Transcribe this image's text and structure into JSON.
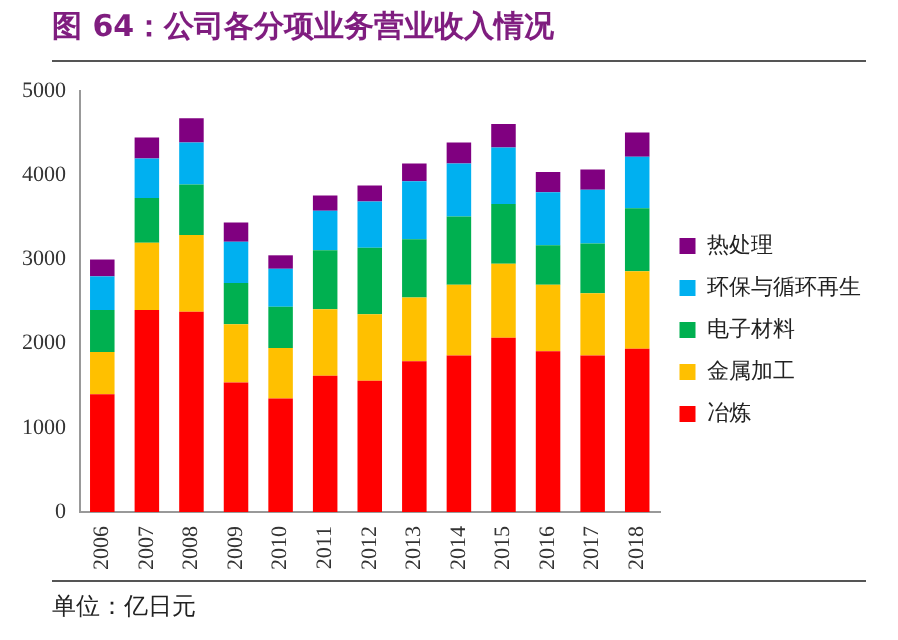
{
  "chart_data": {
    "type": "bar",
    "title": "图 64：公司各分项业务营业收入情况",
    "annotations": [
      "单位：亿日元"
    ],
    "categories": [
      "2006",
      "2007",
      "2008",
      "2009",
      "2010",
      "2011",
      "2012",
      "2013",
      "2014",
      "2015",
      "2016",
      "2017",
      "2018"
    ],
    "stacked": true,
    "series": [
      {
        "name": "冶炼",
        "color": "#ff0000",
        "values": [
          1400,
          2400,
          2380,
          1540,
          1350,
          1620,
          1560,
          1790,
          1860,
          2070,
          1910,
          1860,
          1940
        ]
      },
      {
        "name": "金属加工",
        "color": "#ffc000",
        "values": [
          500,
          800,
          910,
          690,
          600,
          790,
          790,
          760,
          840,
          880,
          790,
          740,
          920
        ]
      },
      {
        "name": "电子材料",
        "color": "#00b050",
        "values": [
          500,
          530,
          600,
          490,
          490,
          700,
          790,
          690,
          810,
          710,
          470,
          590,
          750
        ]
      },
      {
        "name": "环保与循环再生",
        "color": "#00b0f0",
        "values": [
          400,
          470,
          500,
          490,
          450,
          470,
          550,
          690,
          630,
          670,
          630,
          640,
          610
        ]
      },
      {
        "name": "热处理",
        "color": "#800080",
        "values": [
          200,
          250,
          290,
          230,
          160,
          180,
          190,
          210,
          250,
          280,
          240,
          240,
          290
        ]
      }
    ],
    "ylim": [
      0,
      5000
    ],
    "yticks": [
      0,
      1000,
      2000,
      3000,
      4000,
      5000
    ],
    "grid": false,
    "legend": "right"
  }
}
